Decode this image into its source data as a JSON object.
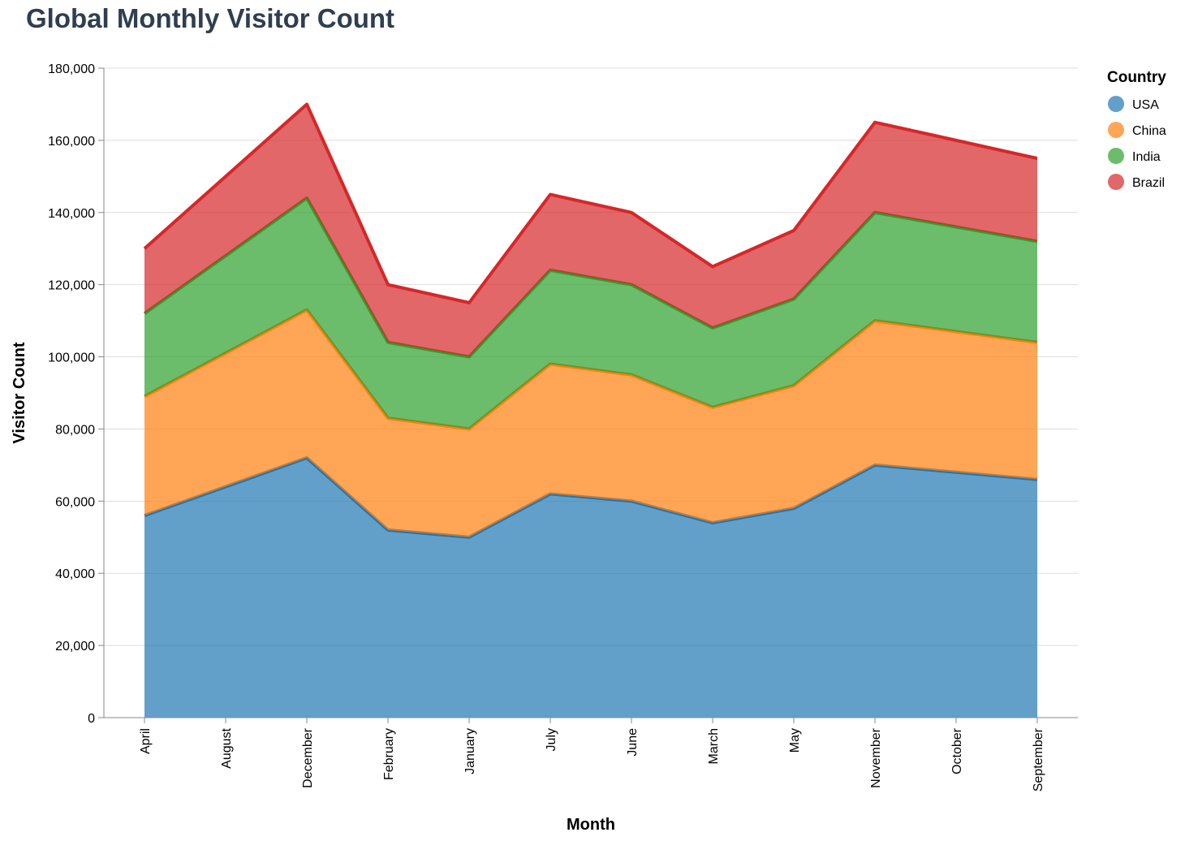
{
  "chart_data": {
    "type": "area",
    "stacked": true,
    "title": "Global Monthly Visitor Count",
    "xlabel": "Month",
    "ylabel": "Visitor Count",
    "ylim": [
      0,
      180000
    ],
    "yticks": [
      0,
      20000,
      40000,
      60000,
      80000,
      100000,
      120000,
      140000,
      160000,
      180000
    ],
    "grid": true,
    "legend_title": "Country",
    "legend_position": "top-right",
    "categories": [
      "April",
      "August",
      "December",
      "February",
      "January",
      "July",
      "June",
      "March",
      "May",
      "November",
      "October",
      "September"
    ],
    "series": [
      {
        "name": "USA",
        "color": "#1f77b4",
        "values": [
          56000,
          64000,
          72000,
          52000,
          50000,
          62000,
          60000,
          54000,
          58000,
          70000,
          68000,
          66000
        ]
      },
      {
        "name": "China",
        "color": "#ff7f0e",
        "values": [
          33000,
          37000,
          41000,
          31000,
          30000,
          36000,
          35000,
          32000,
          34000,
          40000,
          39000,
          38000
        ]
      },
      {
        "name": "India",
        "color": "#2ca02c",
        "values": [
          23000,
          27000,
          31000,
          21000,
          20000,
          26000,
          25000,
          22000,
          24000,
          30000,
          29000,
          28000
        ]
      },
      {
        "name": "Brazil",
        "color": "#d62728",
        "values": [
          18000,
          22000,
          26000,
          16000,
          15000,
          21000,
          20000,
          17000,
          19000,
          25000,
          24000,
          23000
        ]
      }
    ]
  }
}
